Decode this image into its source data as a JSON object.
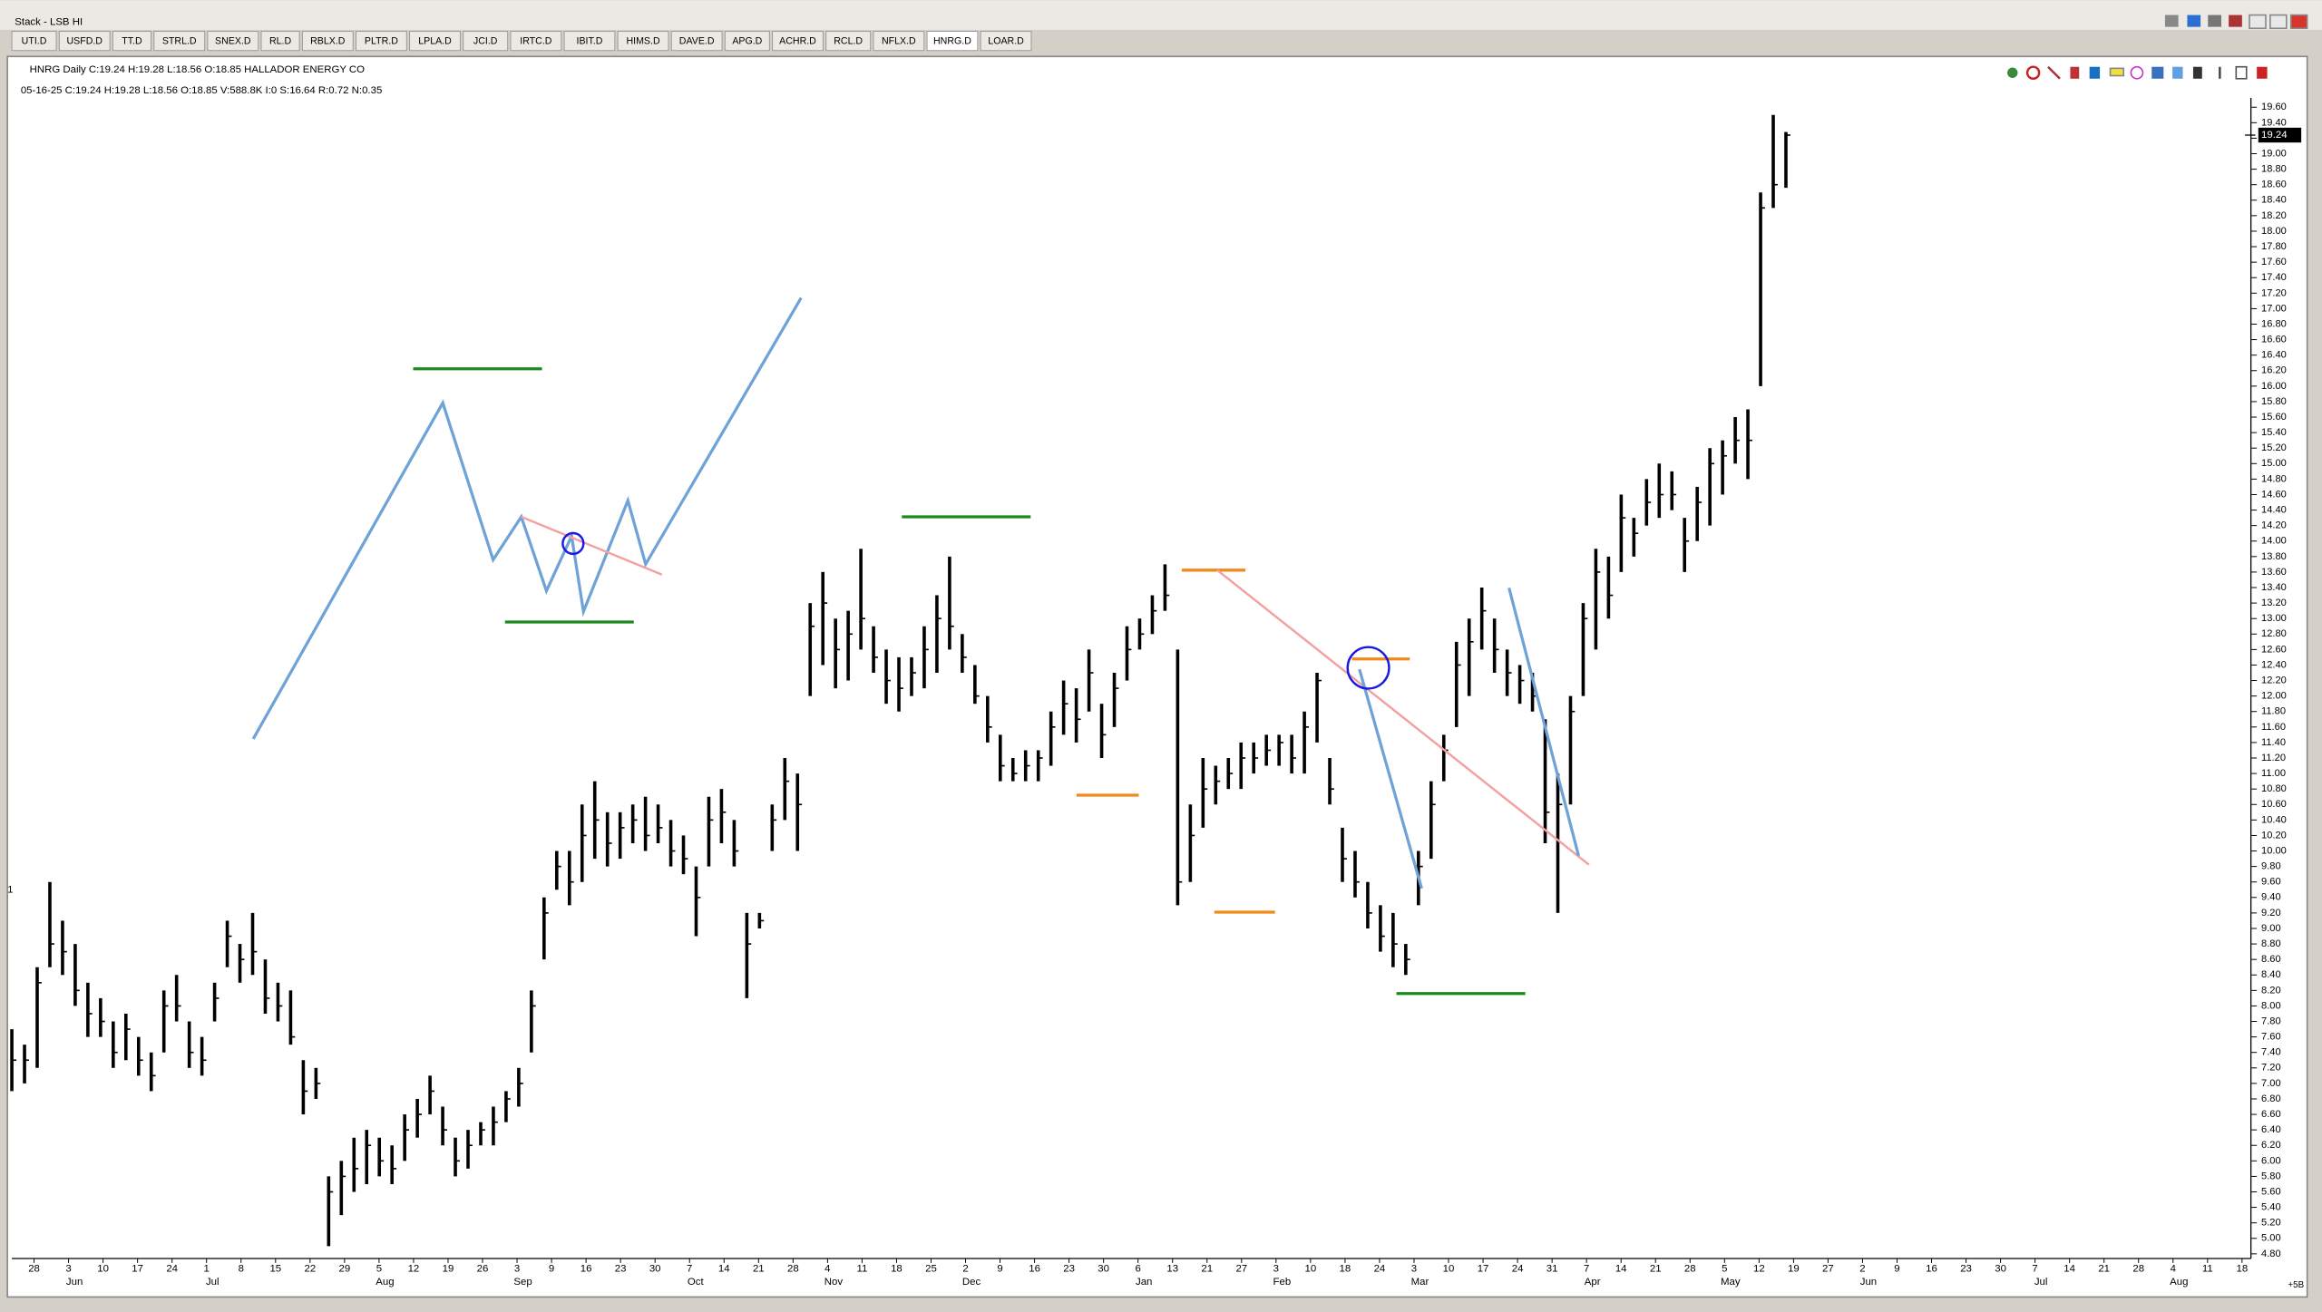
{
  "window_title": "Stack - LSB HI",
  "tabs": [
    "UTI.D",
    "USFD.D",
    "TT.D",
    "STRL.D",
    "SNEX.D",
    "RL.D",
    "RBLX.D",
    "PLTR.D",
    "LPLA.D",
    "JCI.D",
    "IRTC.D",
    "IBIT.D",
    "HIMS.D",
    "DAVE.D",
    "APG.D",
    "ACHR.D",
    "RCL.D",
    "NFLX.D",
    "HNRG.D",
    "LOAR.D"
  ],
  "active_tab": "HNRG.D",
  "header": {
    "line1": "HNRG Daily C:19.24 H:19.28 L:18.56 O:18.85 HALLADOR ENERGY CO",
    "line2": "05-16-25 C:19.24 H:19.28 L:18.56 O:18.85 V:588.8K I:0 S:16.64 R:0.72 N:0.35"
  },
  "left_marker": "1",
  "corner_label": "+5B",
  "chart_data": {
    "type": "ohlc",
    "color": "#000000",
    "ylim": [
      4.74,
      19.72
    ],
    "last_price": 19.24,
    "low": [
      6.9,
      7.0,
      7.2,
      8.5,
      8.4,
      8.0,
      7.6,
      7.6,
      7.2,
      7.3,
      7.1,
      6.9,
      7.4,
      7.8,
      7.2,
      7.1,
      7.8,
      8.5,
      8.3,
      8.4,
      7.9,
      7.8,
      7.5,
      6.6,
      6.8,
      4.9,
      5.3,
      5.6,
      5.7,
      5.8,
      5.7,
      6.0,
      6.3,
      6.6,
      6.2,
      5.8,
      5.9,
      6.2,
      6.2,
      6.5,
      6.7,
      7.4,
      8.6,
      9.5,
      9.3,
      9.6,
      9.9,
      9.8,
      9.9,
      10.1,
      10.0,
      10.1,
      9.8,
      9.7,
      8.9,
      9.8,
      10.1,
      9.8,
      8.1,
      9.0,
      10.0,
      10.4,
      10.0,
      12.0,
      12.4,
      12.1,
      12.2,
      12.6,
      12.3,
      11.9,
      11.8,
      12.0,
      12.1,
      12.3,
      12.6,
      12.3,
      11.9,
      11.4,
      10.9,
      10.9,
      10.9,
      10.9,
      11.1,
      11.5,
      11.4,
      11.8,
      11.2,
      11.6,
      12.2,
      12.6,
      12.8,
      13.1,
      9.3,
      9.6,
      10.3,
      10.6,
      10.8,
      10.8,
      11.0,
      11.1,
      11.1,
      11.0,
      11.0,
      11.4,
      10.6,
      9.6,
      9.4,
      9.0,
      8.7,
      8.5,
      8.4,
      9.3,
      9.9,
      10.9,
      11.6,
      12.0,
      12.6,
      12.3,
      12.0,
      11.9,
      11.8,
      10.1,
      9.2,
      10.6,
      12.0,
      12.6,
      13.0,
      13.6,
      13.8,
      14.2,
      14.3,
      14.4,
      13.6,
      14.0,
      14.2,
      14.6,
      15.0,
      14.8,
      16.0,
      18.3,
      18.56
    ],
    "high": [
      7.7,
      7.5,
      8.5,
      9.6,
      9.1,
      8.8,
      8.3,
      8.1,
      7.8,
      7.9,
      7.6,
      7.4,
      8.2,
      8.4,
      7.8,
      7.6,
      8.3,
      9.1,
      8.8,
      9.2,
      8.6,
      8.3,
      8.2,
      7.3,
      7.2,
      5.8,
      6.0,
      6.3,
      6.4,
      6.3,
      6.2,
      6.6,
      6.8,
      7.1,
      6.7,
      6.3,
      6.4,
      6.5,
      6.7,
      6.9,
      7.2,
      8.2,
      9.4,
      10.0,
      10.0,
      10.6,
      10.9,
      10.5,
      10.5,
      10.6,
      10.7,
      10.6,
      10.4,
      10.2,
      9.8,
      10.7,
      10.8,
      10.4,
      9.2,
      9.2,
      10.6,
      11.2,
      11.0,
      13.2,
      13.6,
      13.0,
      13.1,
      13.9,
      12.9,
      12.6,
      12.5,
      12.5,
      12.9,
      13.3,
      13.8,
      12.8,
      12.4,
      12.0,
      11.5,
      11.2,
      11.3,
      11.3,
      11.8,
      12.2,
      12.1,
      12.6,
      11.9,
      12.3,
      12.9,
      13.0,
      13.3,
      13.7,
      12.6,
      10.6,
      11.2,
      11.1,
      11.2,
      11.4,
      11.4,
      11.5,
      11.5,
      11.5,
      11.8,
      12.3,
      11.2,
      10.3,
      10.0,
      9.6,
      9.3,
      9.2,
      8.8,
      10.0,
      10.9,
      11.5,
      12.7,
      13.0,
      13.4,
      13.0,
      12.6,
      12.4,
      12.3,
      11.7,
      11.0,
      12.0,
      13.2,
      13.9,
      13.8,
      14.6,
      14.3,
      14.8,
      15.0,
      14.9,
      14.3,
      14.7,
      15.2,
      15.3,
      15.6,
      15.7,
      18.5,
      19.5,
      19.28
    ],
    "close": [
      7.3,
      7.3,
      8.3,
      8.8,
      8.7,
      8.2,
      7.9,
      7.8,
      7.4,
      7.7,
      7.3,
      7.1,
      8.0,
      8.0,
      7.4,
      7.3,
      8.1,
      8.9,
      8.6,
      8.7,
      8.1,
      8.0,
      7.6,
      6.9,
      7.0,
      5.6,
      5.8,
      5.9,
      6.2,
      6.0,
      5.9,
      6.4,
      6.6,
      6.9,
      6.4,
      6.0,
      6.2,
      6.4,
      6.5,
      6.8,
      7.0,
      8.0,
      9.2,
      9.8,
      9.6,
      10.2,
      10.4,
      10.1,
      10.3,
      10.4,
      10.2,
      10.3,
      10.0,
      9.9,
      9.4,
      10.4,
      10.5,
      10.0,
      8.8,
      9.1,
      10.4,
      10.9,
      10.6,
      12.9,
      13.2,
      12.6,
      12.8,
      13.0,
      12.5,
      12.2,
      12.1,
      12.3,
      12.6,
      13.0,
      12.9,
      12.5,
      12.0,
      11.6,
      11.1,
      11.0,
      11.1,
      11.2,
      11.6,
      11.9,
      11.7,
      12.3,
      11.5,
      12.1,
      12.6,
      12.8,
      13.1,
      13.3,
      9.6,
      10.2,
      10.8,
      10.9,
      11.0,
      11.2,
      11.2,
      11.3,
      11.4,
      11.2,
      11.6,
      12.2,
      10.8,
      9.9,
      9.6,
      9.2,
      8.9,
      8.8,
      8.6,
      9.8,
      10.6,
      11.3,
      12.4,
      12.7,
      13.1,
      12.6,
      12.3,
      12.2,
      12.0,
      10.5,
      10.6,
      11.8,
      13.0,
      13.6,
      13.3,
      14.3,
      14.1,
      14.5,
      14.6,
      14.6,
      14.0,
      14.5,
      15.0,
      15.1,
      15.3,
      15.3,
      18.3,
      18.6,
      19.24
    ],
    "yticks": [
      {
        "value": 4.8,
        "label": "4.80"
      },
      {
        "value": 5,
        "label": "5.00"
      },
      {
        "value": 5.2,
        "label": "5.20"
      },
      {
        "value": 5.4,
        "label": "5.40"
      },
      {
        "value": 5.6,
        "label": "5.60"
      },
      {
        "value": 5.8,
        "label": "5.80"
      },
      {
        "value": 6,
        "label": "6.00"
      },
      {
        "value": 6.2,
        "label": "6.20"
      },
      {
        "value": 6.4,
        "label": "6.40"
      },
      {
        "value": 6.6,
        "label": "6.60"
      },
      {
        "value": 6.8,
        "label": "6.80"
      },
      {
        "value": 7,
        "label": "7.00"
      },
      {
        "value": 7.2,
        "label": "7.20"
      },
      {
        "value": 7.4,
        "label": "7.40"
      },
      {
        "value": 7.6,
        "label": "7.60"
      },
      {
        "value": 7.8,
        "label": "7.80"
      },
      {
        "value": 8,
        "label": "8.00"
      },
      {
        "value": 8.2,
        "label": "8.20"
      },
      {
        "value": 8.4,
        "label": "8.40"
      },
      {
        "value": 8.6,
        "label": "8.60"
      },
      {
        "value": 8.8,
        "label": "8.80"
      },
      {
        "value": 9,
        "label": "9.00"
      },
      {
        "value": 9.2,
        "label": "9.20"
      },
      {
        "value": 9.4,
        "label": "9.40"
      },
      {
        "value": 9.6,
        "label": "9.60"
      },
      {
        "value": 9.8,
        "label": "9.80"
      },
      {
        "value": 10,
        "label": "10.00"
      },
      {
        "value": 10.2,
        "label": "10.20"
      },
      {
        "value": 10.4,
        "label": "10.40"
      },
      {
        "value": 10.6,
        "label": "10.60"
      },
      {
        "value": 10.8,
        "label": "10.80"
      },
      {
        "value": 11,
        "label": "11.00"
      },
      {
        "value": 11.2,
        "label": "11.20"
      },
      {
        "value": 11.4,
        "label": "11.40"
      },
      {
        "value": 11.6,
        "label": "11.60"
      },
      {
        "value": 11.8,
        "label": "11.80"
      },
      {
        "value": 12,
        "label": "12.00"
      },
      {
        "value": 12.2,
        "label": "12.20"
      },
      {
        "value": 12.4,
        "label": "12.40"
      },
      {
        "value": 12.6,
        "label": "12.60"
      },
      {
        "value": 12.8,
        "label": "12.80"
      },
      {
        "value": 13,
        "label": "13.00"
      },
      {
        "value": 13.2,
        "label": "13.20"
      },
      {
        "value": 13.4,
        "label": "13.40"
      },
      {
        "value": 13.6,
        "label": "13.60"
      },
      {
        "value": 13.8,
        "label": "13.80"
      },
      {
        "value": 14,
        "label": "14.00"
      },
      {
        "value": 14.2,
        "label": "14.20"
      },
      {
        "value": 14.4,
        "label": "14.40"
      },
      {
        "value": 14.6,
        "label": "14.60"
      },
      {
        "value": 14.8,
        "label": "14.80"
      },
      {
        "value": 15,
        "label": "15.00"
      },
      {
        "value": 15.2,
        "label": "15.20"
      },
      {
        "value": 15.4,
        "label": "15.40"
      },
      {
        "value": 15.6,
        "label": "15.60"
      },
      {
        "value": 15.8,
        "label": "15.80"
      },
      {
        "value": 16,
        "label": "16.00"
      },
      {
        "value": 16.2,
        "label": "16.20"
      },
      {
        "value": 16.4,
        "label": "16.40"
      },
      {
        "value": 16.6,
        "label": "16.60"
      },
      {
        "value": 16.8,
        "label": "16.80"
      },
      {
        "value": 17,
        "label": "17.00"
      },
      {
        "value": 17.2,
        "label": "17.20"
      },
      {
        "value": 17.4,
        "label": "17.40"
      },
      {
        "value": 17.6,
        "label": "17.60"
      },
      {
        "value": 17.8,
        "label": "17.80"
      },
      {
        "value": 18,
        "label": "18.00"
      },
      {
        "value": 18.2,
        "label": "18.20"
      },
      {
        "value": 18.4,
        "label": "18.40"
      },
      {
        "value": 18.6,
        "label": "18.60"
      },
      {
        "value": 18.8,
        "label": "18.80"
      },
      {
        "value": 19,
        "label": "19.00"
      },
      {
        "value": 19.2,
        "label": "19.20"
      },
      {
        "value": 19.4,
        "label": "19.40"
      },
      {
        "value": 19.6,
        "label": "19.60"
      }
    ],
    "x_axis": [
      {
        "label": null,
        "days": [
          28
        ]
      },
      {
        "label": "Jun",
        "days": [
          3,
          10,
          17,
          24
        ]
      },
      {
        "label": "Jul",
        "days": [
          1,
          8,
          15,
          22,
          29
        ]
      },
      {
        "label": "Aug",
        "days": [
          5,
          12,
          19,
          26
        ]
      },
      {
        "label": "Sep",
        "days": [
          3,
          9,
          16,
          23,
          30
        ]
      },
      {
        "label": "Oct",
        "days": [
          7,
          14,
          21,
          28
        ]
      },
      {
        "label": "Nov",
        "days": [
          4,
          11,
          18,
          25
        ]
      },
      {
        "label": "Dec",
        "days": [
          2,
          9,
          16,
          23,
          30
        ]
      },
      {
        "label": "Jan",
        "days": [
          6,
          13,
          21,
          27
        ]
      },
      {
        "label": "Feb",
        "days": [
          3,
          10,
          18,
          24
        ]
      },
      {
        "label": "Mar",
        "days": [
          3,
          10,
          17,
          24,
          31
        ]
      },
      {
        "label": "Apr",
        "days": [
          7,
          14,
          21,
          28
        ]
      },
      {
        "label": "May",
        "days": [
          5,
          12,
          19,
          27
        ]
      },
      {
        "label": "Jun",
        "days": [
          2,
          9,
          16,
          23,
          30
        ]
      },
      {
        "label": "Jul",
        "days": [
          7,
          14,
          21,
          28
        ]
      },
      {
        "label": "Aug",
        "days": [
          4,
          11,
          18
        ]
      }
    ]
  }
}
